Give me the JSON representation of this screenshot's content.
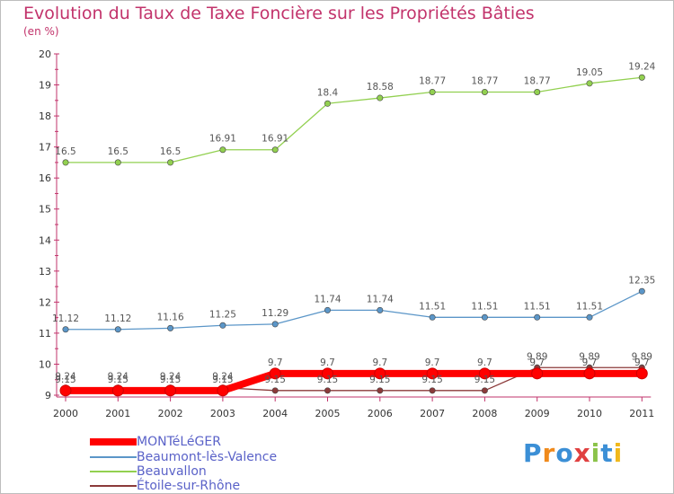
{
  "title": "Evolution du Taux de Taxe Foncière sur les Propriétés Bâties",
  "unit_label": "(en %)",
  "logo": {
    "text": "Proxiti",
    "letters": [
      "P",
      "r",
      "o",
      "x",
      "i",
      "t",
      "i"
    ]
  },
  "colors": {
    "title": "#c2336b",
    "axis": "#c2336b",
    "legend_text": "#5a62c8",
    "monteleger": "#ff0000",
    "beaumont": "#5b96c8",
    "beauvallon": "#92d050",
    "etoile": "#8b3a3a"
  },
  "chart_data": {
    "type": "line",
    "title": "Evolution du Taux de Taxe Foncière sur les Propriétés Bâties",
    "ylabel": "(en %)",
    "xlabel": "",
    "ylim": [
      9,
      20
    ],
    "yticks": [
      9,
      10,
      11,
      12,
      13,
      14,
      15,
      16,
      17,
      18,
      19,
      20
    ],
    "grid": false,
    "legend_position": "bottom-left",
    "categories": [
      "2000",
      "2001",
      "2002",
      "2003",
      "2004",
      "2005",
      "2006",
      "2007",
      "2008",
      "2009",
      "2010",
      "2011"
    ],
    "series": [
      {
        "name": "MONTéLéGER",
        "color": "#ff0000",
        "values": [
          9.15,
          9.15,
          9.15,
          9.15,
          9.7,
          9.7,
          9.7,
          9.7,
          9.7,
          9.7,
          9.7,
          9.7
        ],
        "labels": [
          "9.15",
          "9.15",
          "9.15",
          "9.15",
          "9.7",
          "9.7",
          "9.7",
          "9.7",
          "9.7",
          "9.7",
          "9.7",
          "9.7"
        ]
      },
      {
        "name": "Beaumont-lès-Valence",
        "color": "#5b96c8",
        "values": [
          11.12,
          11.12,
          11.16,
          11.25,
          11.29,
          11.74,
          11.74,
          11.51,
          11.51,
          11.51,
          11.51,
          12.35
        ],
        "labels": [
          "11.12",
          "11.12",
          "11.16",
          "11.25",
          "11.29",
          "11.74",
          "11.74",
          "11.51",
          "11.51",
          "11.51",
          "11.51",
          "12.35"
        ]
      },
      {
        "name": "Beauvallon",
        "color": "#92d050",
        "values": [
          16.5,
          16.5,
          16.5,
          16.91,
          16.91,
          18.4,
          18.58,
          18.77,
          18.77,
          18.77,
          19.05,
          19.24
        ],
        "labels": [
          "16.5",
          "16.5",
          "16.5",
          "16.91",
          "16.91",
          "18.4",
          "18.58",
          "18.77",
          "18.77",
          "18.77",
          "19.05",
          "19.24"
        ]
      },
      {
        "name": "Étoile-sur-Rhône",
        "color": "#8b3a3a",
        "values": [
          9.24,
          9.24,
          9.24,
          9.24,
          9.15,
          9.15,
          9.15,
          9.15,
          9.15,
          9.89,
          9.89,
          9.89
        ],
        "labels": [
          "9.24",
          "9.24",
          "9.24",
          "9.24",
          "9.15",
          "9.15",
          "9.15",
          "9.15",
          "9.15",
          "9.89",
          "9.89",
          "9.89"
        ]
      }
    ]
  }
}
